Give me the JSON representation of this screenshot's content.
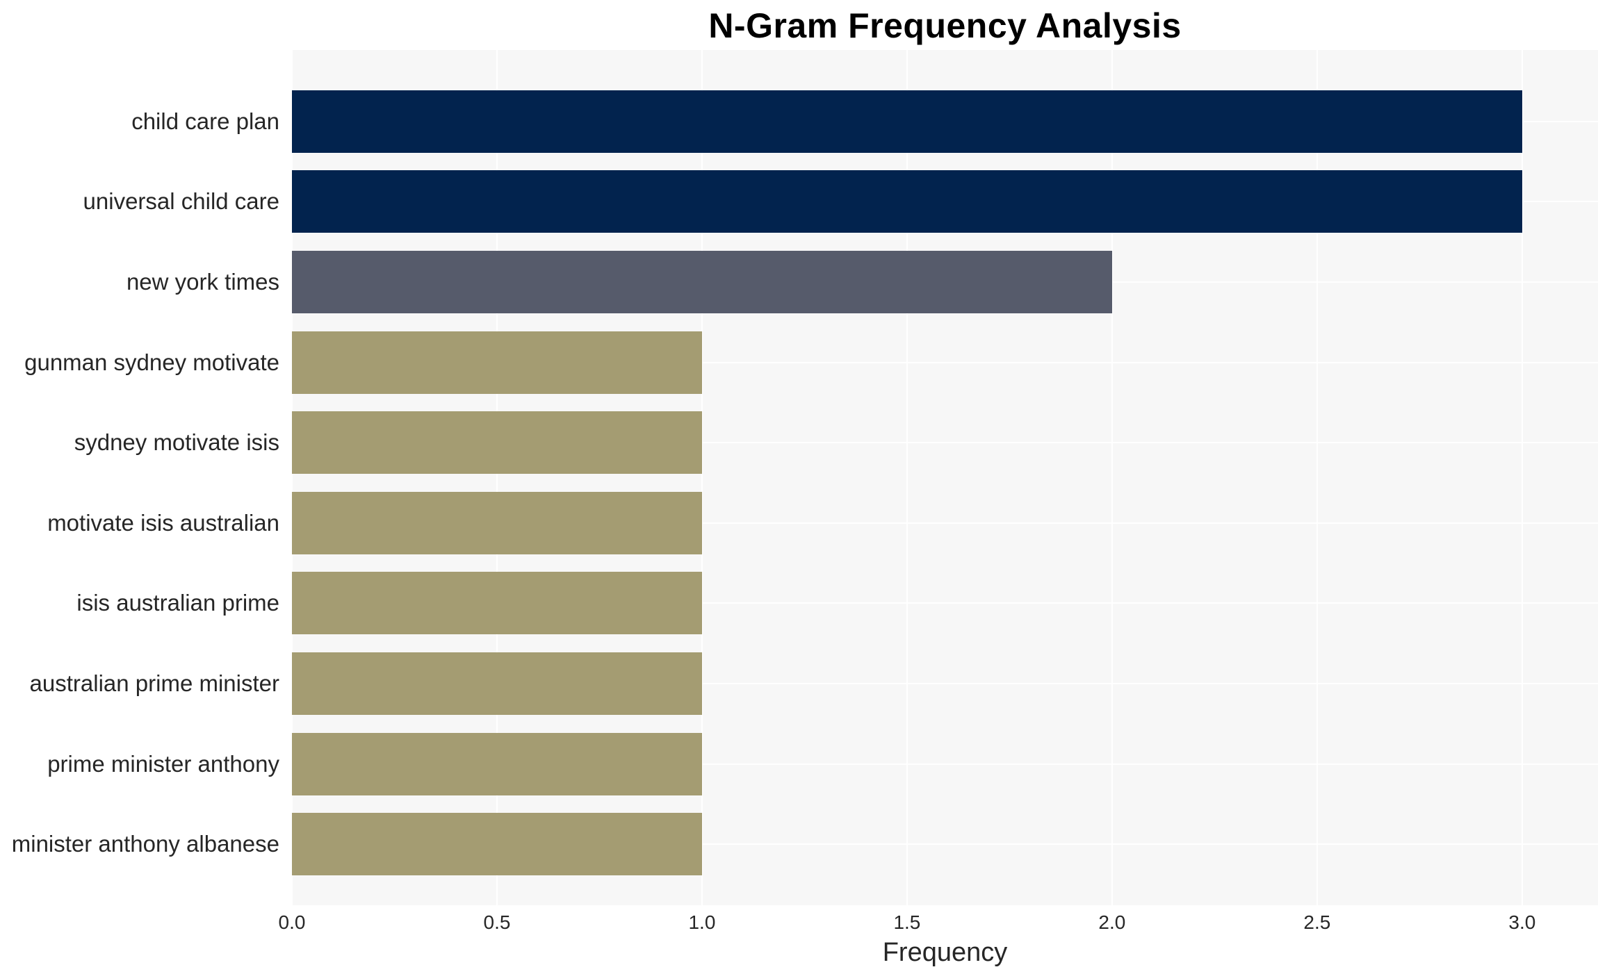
{
  "page": {
    "background": "#ffffff"
  },
  "chart_data": {
    "type": "bar",
    "orientation": "horizontal",
    "title": "N-Gram Frequency Analysis",
    "xlabel": "Frequency",
    "ylabel": "",
    "categories": [
      "child care plan",
      "universal child care",
      "new york times",
      "gunman sydney motivate",
      "sydney motivate isis",
      "motivate isis australian",
      "isis australian prime",
      "australian prime minister",
      "prime minister anthony",
      "minister anthony albanese"
    ],
    "values": [
      3,
      3,
      2,
      1,
      1,
      1,
      1,
      1,
      1,
      1
    ],
    "bar_colors": [
      "#02234e",
      "#02234e",
      "#565b6b",
      "#a49c72",
      "#a49c72",
      "#a49c72",
      "#a49c72",
      "#a49c72",
      "#a49c72",
      "#a49c72"
    ],
    "xticks": [
      "0.0",
      "0.5",
      "1.0",
      "1.5",
      "2.0",
      "2.5",
      "3.0"
    ],
    "xlim": [
      0,
      3.185
    ],
    "grid": true,
    "legend_position": "none",
    "plot_background": "#f7f7f7",
    "gridline_color": "#ffffff",
    "text_color": "#262626",
    "title_color": "#000000"
  }
}
